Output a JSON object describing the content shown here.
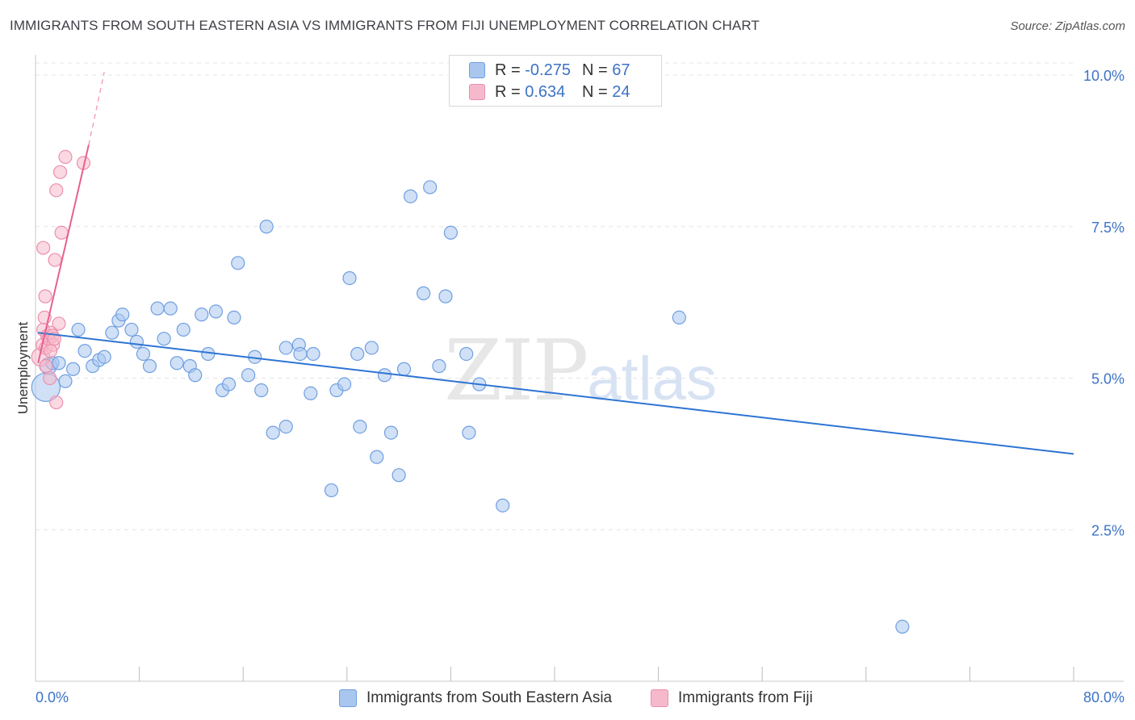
{
  "title": "IMMIGRANTS FROM SOUTH EASTERN ASIA VS IMMIGRANTS FROM FIJI UNEMPLOYMENT CORRELATION CHART",
  "source": "Source: ZipAtlas.com",
  "watermark": {
    "zip": "ZIP",
    "atlas": "atlas"
  },
  "legend_top": {
    "rows": [
      {
        "r_label": "R =",
        "r_value": "-0.275",
        "n_label": "N =",
        "n_value": "67"
      },
      {
        "r_label": "R =",
        "r_value": "0.634",
        "n_label": "N =",
        "n_value": "24"
      }
    ]
  },
  "legend_bottom": {
    "items": [
      "Immigrants from South Eastern Asia",
      "Immigrants from Fiji"
    ]
  },
  "colors": {
    "blue_fill": "#a9c6ee",
    "blue_stroke": "#6f9fe0",
    "blue_line": "#2d74d4",
    "pink_fill": "#f6b9cb",
    "pink_stroke": "#ec8fae",
    "pink_line": "#e8608f",
    "grid": "#e4e4e4",
    "tick_text": "#3d73c6"
  },
  "chart_data": {
    "type": "scatter",
    "title": "IMMIGRANTS FROM SOUTH EASTERN ASIA VS IMMIGRANTS FROM FIJI UNEMPLOYMENT CORRELATION CHART",
    "xlabel": "",
    "ylabel": "Unemployment",
    "xlim": [
      0,
      80
    ],
    "ylim": [
      0,
      10.2
    ],
    "x_tick_labels": [
      "0.0%",
      "80.0%"
    ],
    "y_ticks": [
      {
        "value": 2.5,
        "label": "2.5%"
      },
      {
        "value": 5.0,
        "label": "5.0%"
      },
      {
        "value": 7.5,
        "label": "7.5%"
      },
      {
        "value": 10.0,
        "label": "10.0%"
      }
    ],
    "grid": true,
    "series": [
      {
        "name": "Immigrants from South Eastern Asia",
        "color": "blue",
        "R": -0.275,
        "N": 67,
        "trend": {
          "x0": 0.2,
          "y0": 5.75,
          "x1": 80,
          "y1": 3.75
        },
        "points": [
          [
            0.8,
            4.85,
            2.2
          ],
          [
            1.0,
            5.2,
            1.3
          ],
          [
            1.3,
            5.25,
            1
          ],
          [
            1.8,
            5.25,
            1
          ],
          [
            2.3,
            4.95,
            1
          ],
          [
            2.9,
            5.15,
            1
          ],
          [
            3.3,
            5.8,
            1
          ],
          [
            3.8,
            5.45,
            1
          ],
          [
            4.4,
            5.2,
            1
          ],
          [
            4.9,
            5.3,
            1
          ],
          [
            5.3,
            5.35,
            1
          ],
          [
            5.9,
            5.75,
            1
          ],
          [
            6.4,
            5.95,
            1
          ],
          [
            6.7,
            6.05,
            1
          ],
          [
            7.4,
            5.8,
            1
          ],
          [
            7.8,
            5.6,
            1
          ],
          [
            8.3,
            5.4,
            1
          ],
          [
            8.8,
            5.2,
            1
          ],
          [
            9.4,
            6.15,
            1
          ],
          [
            9.9,
            5.65,
            1
          ],
          [
            10.4,
            6.15,
            1
          ],
          [
            10.9,
            5.25,
            1
          ],
          [
            11.4,
            5.8,
            1
          ],
          [
            11.9,
            5.2,
            1
          ],
          [
            12.3,
            5.05,
            1
          ],
          [
            12.8,
            6.05,
            1
          ],
          [
            13.3,
            5.4,
            1
          ],
          [
            13.9,
            6.1,
            1
          ],
          [
            14.4,
            4.8,
            1
          ],
          [
            14.9,
            4.9,
            1
          ],
          [
            15.3,
            6.0,
            1
          ],
          [
            15.6,
            6.9,
            1
          ],
          [
            16.4,
            5.05,
            1
          ],
          [
            16.9,
            5.35,
            1
          ],
          [
            17.4,
            4.8,
            1
          ],
          [
            17.8,
            7.5,
            1
          ],
          [
            18.3,
            4.1,
            1
          ],
          [
            19.3,
            5.5,
            1
          ],
          [
            19.3,
            4.2,
            1
          ],
          [
            20.3,
            5.55,
            1
          ],
          [
            20.4,
            5.4,
            1
          ],
          [
            21.2,
            4.75,
            1
          ],
          [
            21.4,
            5.4,
            1
          ],
          [
            22.8,
            3.15,
            1
          ],
          [
            23.2,
            4.8,
            1
          ],
          [
            23.8,
            4.9,
            1
          ],
          [
            24.2,
            6.65,
            1
          ],
          [
            24.8,
            5.4,
            1
          ],
          [
            25.0,
            4.2,
            1
          ],
          [
            25.9,
            5.5,
            1
          ],
          [
            26.3,
            3.7,
            1
          ],
          [
            26.9,
            5.05,
            1
          ],
          [
            27.4,
            4.1,
            1
          ],
          [
            28.0,
            3.4,
            1
          ],
          [
            28.4,
            5.15,
            1
          ],
          [
            28.9,
            8.0,
            1
          ],
          [
            29.9,
            6.4,
            1
          ],
          [
            30.4,
            8.15,
            1
          ],
          [
            31.1,
            5.2,
            1
          ],
          [
            31.6,
            6.35,
            1
          ],
          [
            32.0,
            7.4,
            1
          ],
          [
            33.2,
            5.4,
            1
          ],
          [
            33.4,
            4.1,
            1
          ],
          [
            34.2,
            4.9,
            1
          ],
          [
            36.0,
            2.9,
            1
          ],
          [
            49.6,
            6.0,
            1
          ],
          [
            66.8,
            0.9,
            1
          ]
        ]
      },
      {
        "name": "Immigrants from Fiji",
        "color": "pink",
        "R": 0.634,
        "N": 24,
        "trend": {
          "x0": 0.2,
          "y0": 5.25,
          "x1": 4.1,
          "y1": 8.85
        },
        "trend_dashed": {
          "x0": 4.1,
          "y0": 8.85,
          "x1": 5.3,
          "y1": 10.05
        },
        "points": [
          [
            0.4,
            5.35,
            1.4
          ],
          [
            0.55,
            5.55,
            1
          ],
          [
            0.6,
            5.8,
            1
          ],
          [
            0.6,
            7.15,
            1
          ],
          [
            0.7,
            6.0,
            1
          ],
          [
            0.75,
            6.35,
            1
          ],
          [
            0.8,
            5.5,
            1
          ],
          [
            0.9,
            5.7,
            1
          ],
          [
            1.0,
            5.65,
            1
          ],
          [
            1.1,
            5.0,
            1
          ],
          [
            1.2,
            5.75,
            1
          ],
          [
            1.3,
            5.7,
            1
          ],
          [
            1.35,
            5.55,
            1
          ],
          [
            1.45,
            5.65,
            1
          ],
          [
            1.5,
            6.95,
            1
          ],
          [
            1.6,
            8.1,
            1
          ],
          [
            1.6,
            4.6,
            1
          ],
          [
            1.8,
            5.9,
            1
          ],
          [
            1.9,
            8.4,
            1
          ],
          [
            2.0,
            7.4,
            1
          ],
          [
            2.3,
            8.65,
            1
          ],
          [
            3.7,
            8.55,
            1
          ],
          [
            0.8,
            5.2,
            1
          ],
          [
            1.15,
            5.45,
            1
          ]
        ]
      }
    ]
  }
}
